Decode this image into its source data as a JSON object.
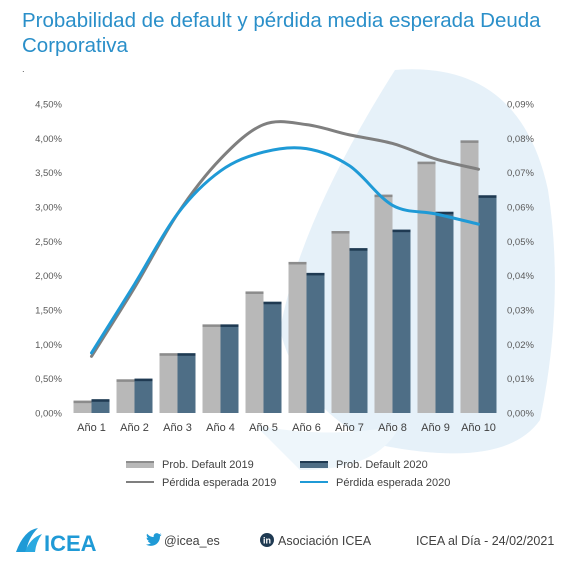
{
  "title": "Probabilidad de default y pérdida media esperada Deuda Corporativa",
  "subtitle_mark": ".",
  "chart_data": {
    "type": "bar",
    "title": "Probabilidad de default y pérdida media esperada Deuda Corporativa",
    "categories": [
      "Año 1",
      "Año 2",
      "Año 3",
      "Año 4",
      "Año 5",
      "Año 6",
      "Año 7",
      "Año 8",
      "Año 9",
      "Año 10"
    ],
    "bar_series": [
      {
        "name": "Prob. Default 2019",
        "axis": "left",
        "color": "#b8b8b8",
        "cap_color": "#8c8c8c",
        "values": [
          0.18,
          0.49,
          0.87,
          1.29,
          1.77,
          2.2,
          2.65,
          3.18,
          3.66,
          3.97
        ]
      },
      {
        "name": "Prob. Default 2020",
        "axis": "left",
        "color": "#4e6e86",
        "cap_color": "#1f3a52",
        "values": [
          0.2,
          0.5,
          0.87,
          1.29,
          1.62,
          2.04,
          2.4,
          2.67,
          2.93,
          3.17
        ]
      }
    ],
    "line_series": [
      {
        "name": "Pérdida esperada 2019",
        "axis": "right",
        "color": "#7f7f7f",
        "values": [
          0.0165,
          0.0365,
          0.058,
          0.074,
          0.084,
          0.084,
          0.081,
          0.0785,
          0.074,
          0.071
        ]
      },
      {
        "name": "Pérdida esperada 2020",
        "axis": "right",
        "color": "#1f9ad6",
        "values": [
          0.0175,
          0.0375,
          0.058,
          0.0705,
          0.076,
          0.077,
          0.072,
          0.0605,
          0.058,
          0.055
        ]
      }
    ],
    "y_left": {
      "ylim": [
        0,
        4.5
      ],
      "ticks": [
        "0,00%",
        "0,50%",
        "1,00%",
        "1,50%",
        "2,00%",
        "2,50%",
        "3,00%",
        "3,50%",
        "4,00%",
        "4,50%"
      ]
    },
    "y_right": {
      "ylim": [
        0,
        0.09
      ],
      "ticks": [
        "0,00%",
        "0,01%",
        "0,02%",
        "0,03%",
        "0,04%",
        "0,05%",
        "0,06%",
        "0,07%",
        "0,08%",
        "0,09%"
      ]
    },
    "grid": false,
    "legend": "bottom"
  },
  "footer": {
    "logo_text": "ICEA",
    "twitter_handle": "@icea_es",
    "linkedin_name": "Asociación ICEA",
    "date_text": "ICEA al Día - 24/02/2021"
  }
}
